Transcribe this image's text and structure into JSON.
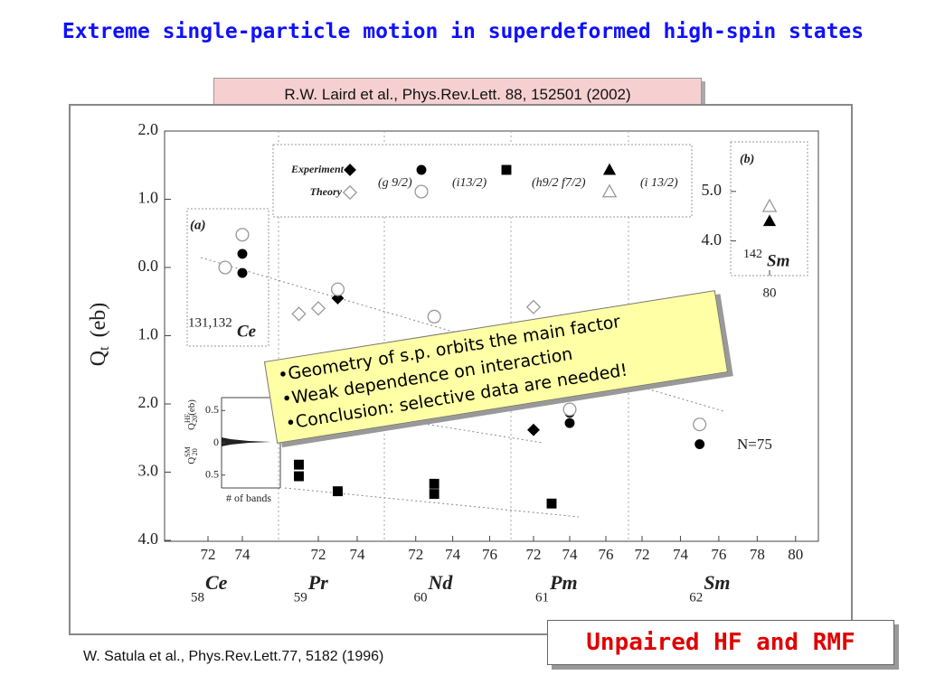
{
  "title": "Extreme single-particle motion in superdeformed high-spin states",
  "reference_top": "R.W. Laird et al., Phys.Rev.Lett. 88, 152501 (2002)",
  "reference_bottom": "W. Satula et al., Phys.Rev.Lett.77, 5182 (1996)",
  "callout": [
    "•Geometry of s.p. orbits the main factor",
    "•Weak dependence on interaction",
    "•Conclusion: selective data are needed!"
  ],
  "badge": "Unpaired HF and RMF",
  "chart_data": {
    "type": "scatter",
    "ylabel": "Q",
    "ylabel_sub": "t",
    "ylabel_unit": "(eb)",
    "ylim": [
      4,
      -2
    ],
    "yticks": [
      {
        "value": -2,
        "label": "2.0"
      },
      {
        "value": -1,
        "label": "1.0"
      },
      {
        "value": 0,
        "label": "0.0"
      },
      {
        "value": 1,
        "label": "1.0"
      },
      {
        "value": 2,
        "label": "2.0"
      },
      {
        "value": 3,
        "label": "3.0"
      },
      {
        "value": 4,
        "label": "4.0"
      }
    ],
    "legend": {
      "rows": [
        {
          "label": "Experiment",
          "marker": "diamond",
          "filled": true
        },
        {
          "label": "Theory",
          "marker": "diamond",
          "filled": false
        }
      ],
      "orbits": [
        {
          "label": "(g 9/2)",
          "marker": "circle",
          "experiment": true,
          "theory": true
        },
        {
          "label": "(i13/2)",
          "marker": "square",
          "experiment": true,
          "theory": false
        },
        {
          "label": "(h9/2 f7/2)",
          "marker": "triangle",
          "experiment": true,
          "theory": true
        },
        {
          "label": "(i 13/2)",
          "marker": "triangle",
          "experiment": false,
          "theory": false
        }
      ]
    },
    "groups": [
      {
        "element": "Ce",
        "z": "58",
        "xlim": [
          70.5,
          75.5
        ],
        "xticks": [
          72,
          74
        ],
        "points": [
          {
            "x": 73,
            "y": 0.0,
            "marker": "circle",
            "filled": true
          },
          {
            "x": 74,
            "y": -0.2,
            "marker": "circle",
            "filled": true
          },
          {
            "x": 74,
            "y": 0.08,
            "marker": "circle",
            "filled": true
          },
          {
            "x": 73,
            "y": 0.0,
            "marker": "circle",
            "filled": false
          },
          {
            "x": 74,
            "y": -0.48,
            "marker": "circle",
            "filled": false
          }
        ]
      },
      {
        "element": "Pr",
        "z": "59",
        "xlim": [
          70,
          75
        ],
        "xticks": [
          72,
          74
        ],
        "points": [
          {
            "x": 71,
            "y": 2.89,
            "marker": "square",
            "filled": true
          },
          {
            "x": 71,
            "y": 3.06,
            "marker": "square",
            "filled": true
          },
          {
            "x": 73,
            "y": 3.28,
            "marker": "square",
            "filled": true
          },
          {
            "x": 73,
            "y": 0.45,
            "marker": "diamond",
            "filled": true
          },
          {
            "x": 73,
            "y": 0.33,
            "marker": "circle",
            "filled": true
          },
          {
            "x": 73,
            "y": 0.32,
            "marker": "circle",
            "filled": false
          },
          {
            "x": 71,
            "y": 0.68,
            "marker": "diamond",
            "filled": false
          },
          {
            "x": 72,
            "y": 0.6,
            "marker": "diamond",
            "filled": false
          }
        ]
      },
      {
        "element": "Nd",
        "z": "60",
        "xlim": [
          70.3,
          77.2
        ],
        "xticks": [
          72,
          74,
          76
        ],
        "points": [
          {
            "x": 73,
            "y": 0.72,
            "marker": "circle",
            "filled": false
          },
          {
            "x": 73,
            "y": 3.17,
            "marker": "square",
            "filled": true
          },
          {
            "x": 73,
            "y": 3.32,
            "marker": "square",
            "filled": true
          }
        ]
      },
      {
        "element": "Pm",
        "z": "61",
        "xlim": [
          70.8,
          77.2
        ],
        "xticks": [
          72,
          74,
          76
        ],
        "points": [
          {
            "x": 72,
            "y": 2.38,
            "marker": "diamond",
            "filled": true
          },
          {
            "x": 72,
            "y": 0.58,
            "marker": "diamond",
            "filled": false
          },
          {
            "x": 73,
            "y": 3.46,
            "marker": "square",
            "filled": true
          },
          {
            "x": 74,
            "y": 2.13,
            "marker": "circle",
            "filled": true
          },
          {
            "x": 74,
            "y": 2.28,
            "marker": "circle",
            "filled": true
          },
          {
            "x": 74,
            "y": 2.08,
            "marker": "circle",
            "filled": false
          }
        ]
      },
      {
        "element": "Sm",
        "z": "62",
        "xlim": [
          71.5,
          81
        ],
        "xticks": [
          72,
          74,
          76,
          78,
          80
        ],
        "points": [
          {
            "x": 75,
            "y": 2.3,
            "marker": "circle",
            "filled": false
          },
          {
            "x": 75,
            "y": 2.59,
            "marker": "circle",
            "filled": true
          }
        ]
      }
    ],
    "panel_a": {
      "label": "(a)",
      "mass": "131,132",
      "element": "Ce"
    },
    "line_label": "N=75",
    "panel_b": {
      "label": "(b)",
      "mass": "142",
      "element": "Sm",
      "ylim": [
        3.3,
        6.0
      ],
      "yticks": [
        {
          "value": 5,
          "label": "5.0"
        },
        {
          "value": 4,
          "label": "4.0"
        }
      ],
      "xtick": 80,
      "points": [
        {
          "x": 80,
          "y": 4.7,
          "marker": "triangle",
          "filled": false
        },
        {
          "x": 80,
          "y": 4.4,
          "marker": "triangle",
          "filled": true
        }
      ]
    },
    "inset": {
      "ylabel_top": "Q",
      "ylabel_top_sup": "HF",
      "ylabel_top_sub": "20",
      "ylabel_top_unit": "(eb)",
      "ylabel_bottom": "Q",
      "ylabel_bottom_sup": "SM",
      "ylabel_bottom_sub": "20",
      "xlabel": "# of bands",
      "yticks": [
        {
          "value": 0.5,
          "label": "0.5"
        },
        0,
        {
          "value": -0.5,
          "label": "0.5"
        }
      ],
      "ylim": [
        -0.7,
        0.7
      ]
    }
  }
}
